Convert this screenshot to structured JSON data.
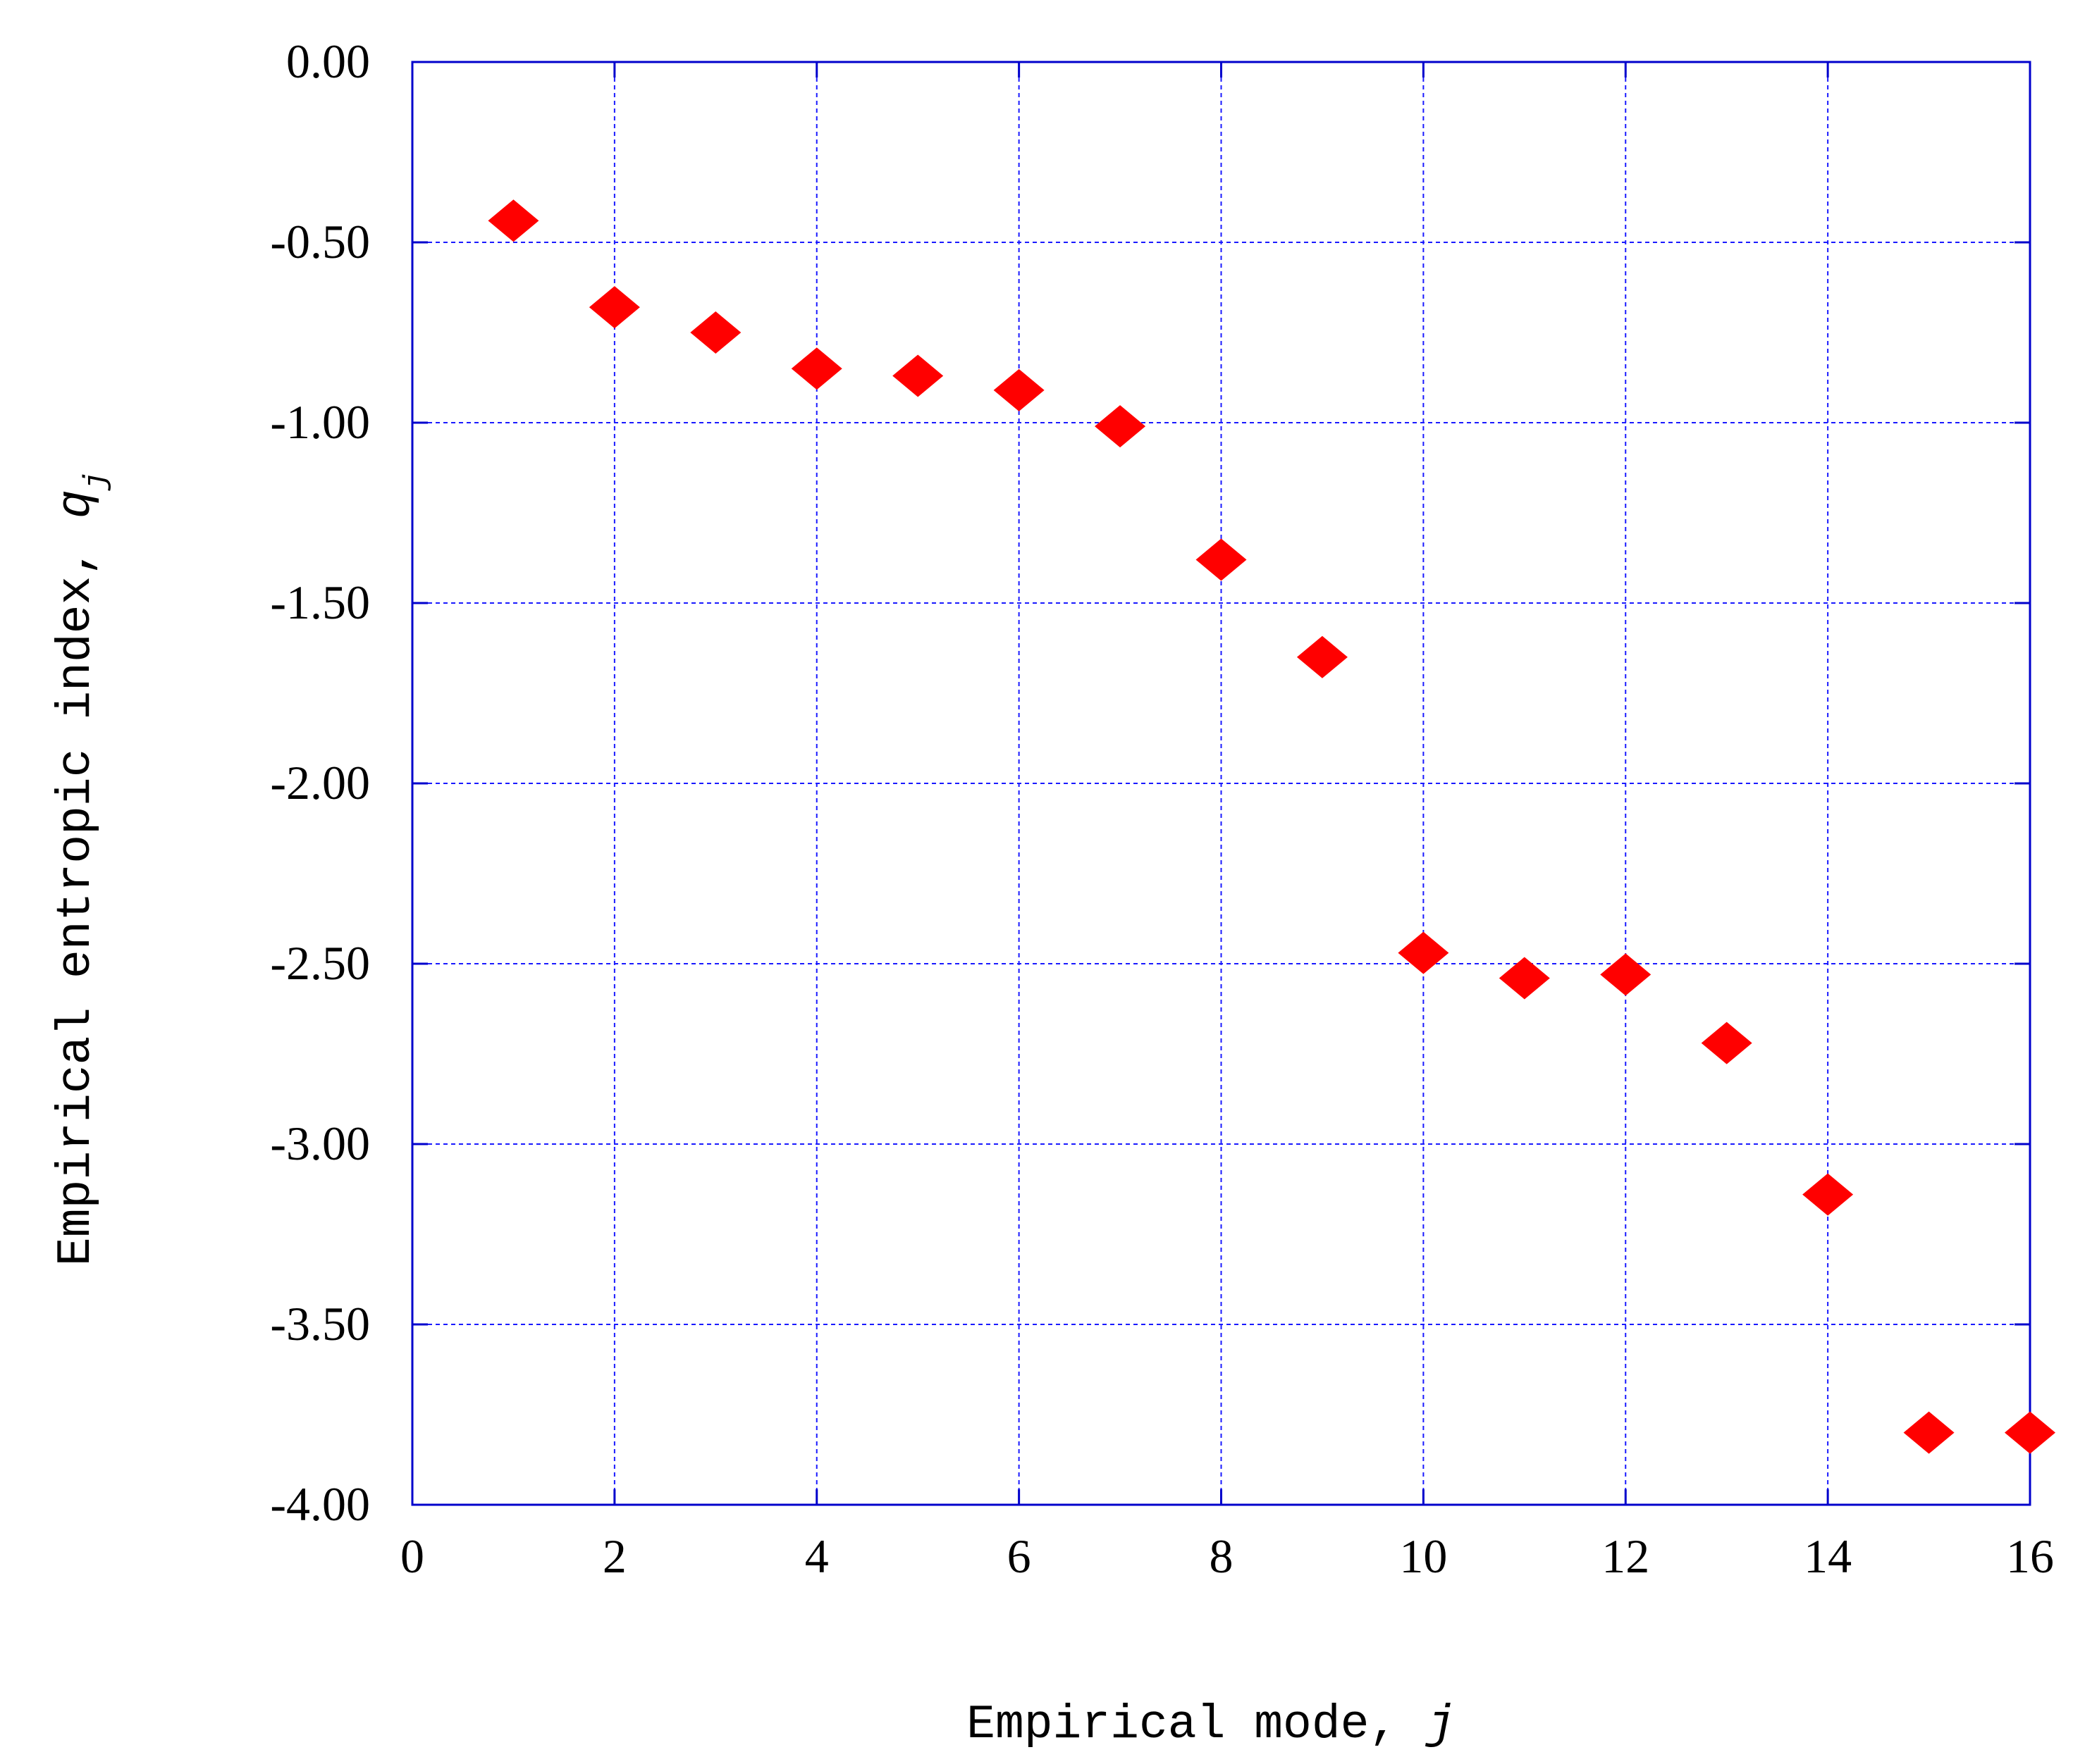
{
  "chart_data": {
    "type": "scatter",
    "xlabel": "Empirical mode, j",
    "xlabel_prefix": "Empirical mode, ",
    "xlabel_var": "j",
    "ylabel": "Empirical entropic index, q_j",
    "ylabel_prefix": "Empirical entropic index, ",
    "ylabel_var": "q",
    "ylabel_subscript": "j",
    "xlim": [
      0,
      16
    ],
    "ylim": [
      -4.0,
      0.0
    ],
    "x_ticks": [
      0,
      2,
      4,
      6,
      8,
      10,
      12,
      14,
      16
    ],
    "x_tick_labels": [
      "0",
      "2",
      "4",
      "6",
      "8",
      "10",
      "12",
      "14",
      "16"
    ],
    "y_ticks": [
      0.0,
      -0.5,
      -1.0,
      -1.5,
      -2.0,
      -2.5,
      -3.0,
      -3.5,
      -4.0
    ],
    "y_tick_labels": [
      "0.00",
      "-0.50",
      "-1.00",
      "-1.50",
      "-2.00",
      "-2.50",
      "-3.00",
      "-3.50",
      "-4.00"
    ],
    "grid": true,
    "series": [
      {
        "marker": "diamond",
        "x": [
          1,
          2,
          3,
          4,
          5,
          6,
          7,
          8,
          9,
          10,
          11,
          12,
          13,
          14,
          15,
          16
        ],
        "y": [
          -0.44,
          -0.68,
          -0.75,
          -0.85,
          -0.87,
          -0.91,
          -1.01,
          -1.38,
          -1.65,
          -2.47,
          -2.54,
          -2.53,
          -2.72,
          -3.14,
          -3.8,
          -3.8
        ]
      }
    ],
    "colors": {
      "marker": "#ff0000",
      "frame": "#0000cc",
      "grid": "#1a1aff",
      "text": "#000000"
    }
  }
}
